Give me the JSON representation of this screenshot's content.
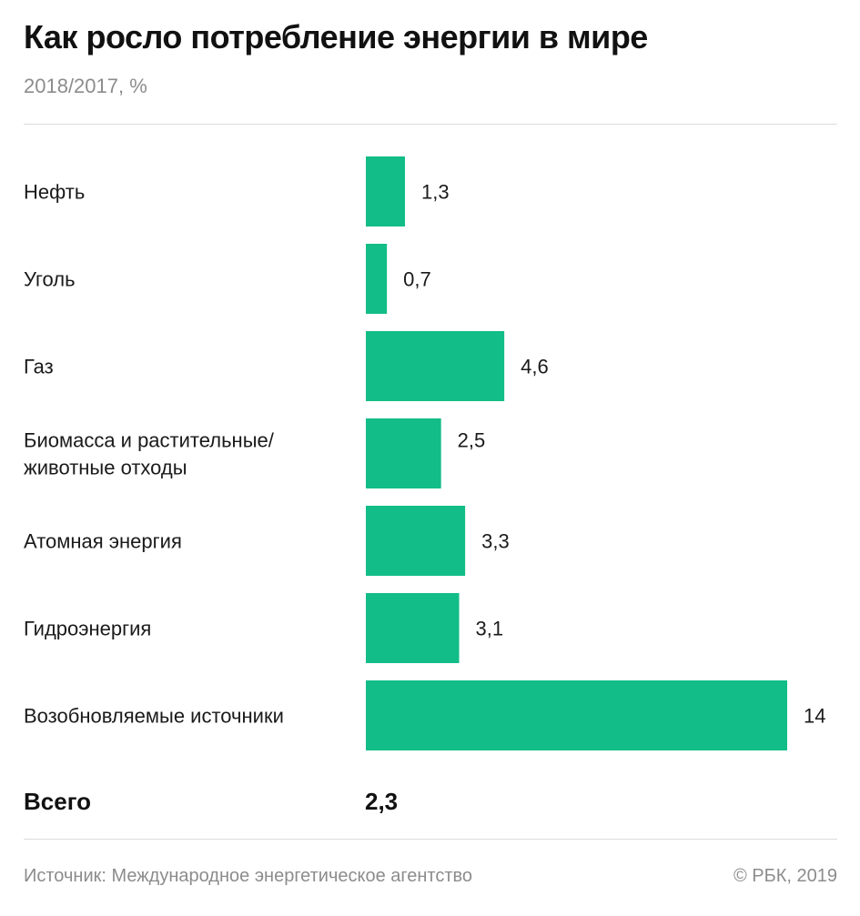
{
  "header": {
    "title": "Как росло потребление энергии в мире",
    "subtitle": "2018/2017, %"
  },
  "chart_data": {
    "type": "bar",
    "orientation": "horizontal",
    "title": "Как росло потребление энергии в мире",
    "subtitle": "2018/2017, %",
    "categories": [
      [
        "Нефть"
      ],
      [
        "Уголь"
      ],
      [
        "Газ"
      ],
      [
        "Биомасса и растительные/",
        "животные отходы"
      ],
      [
        "Атомная энергия"
      ],
      [
        "Гидроэнергия"
      ],
      [
        "Возобновляемые источники"
      ]
    ],
    "values": [
      1.3,
      0.7,
      4.6,
      2.5,
      3.3,
      3.1,
      14
    ],
    "value_labels": [
      "1,3",
      "0,7",
      "4,6",
      "2,5",
      "3,3",
      "3,1",
      "14"
    ],
    "xlim": [
      0,
      14
    ],
    "bar_color": "#12bd87",
    "grid": false,
    "legend": "none"
  },
  "total": {
    "label": "Всего",
    "value": "2,3"
  },
  "footer": {
    "source": "Источник: Международное энергетическое агентство",
    "copyright": "© РБК, 2019"
  }
}
